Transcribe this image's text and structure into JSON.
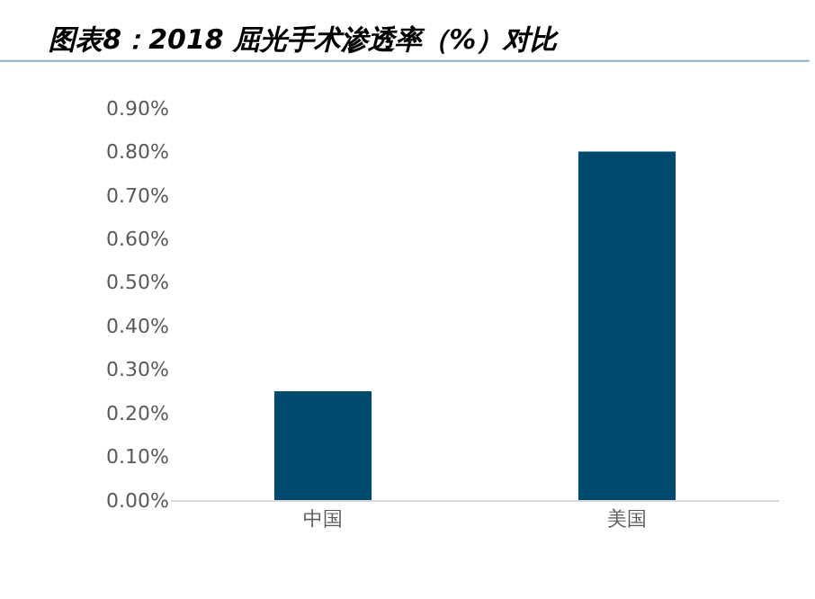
{
  "chart_data": {
    "type": "bar",
    "title": "图表8：2018 屈光手术渗透率（%）对比",
    "categories": [
      "中国",
      "美国"
    ],
    "values": [
      0.25,
      0.8
    ],
    "color": "#004a6e",
    "ylim": [
      0,
      0.9
    ],
    "yticks": [
      {
        "value": 0,
        "label": "0.00%"
      },
      {
        "value": 0.1,
        "label": "0.10%"
      },
      {
        "value": 0.2,
        "label": "0.20%"
      },
      {
        "value": 0.3,
        "label": "0.30%"
      },
      {
        "value": 0.4,
        "label": "0.40%"
      },
      {
        "value": 0.5,
        "label": "0.50%"
      },
      {
        "value": 0.6,
        "label": "0.60%"
      },
      {
        "value": 0.7,
        "label": "0.70%"
      },
      {
        "value": 0.8,
        "label": "0.80%"
      },
      {
        "value": 0.9,
        "label": "0.90%"
      }
    ],
    "grid": false
  }
}
